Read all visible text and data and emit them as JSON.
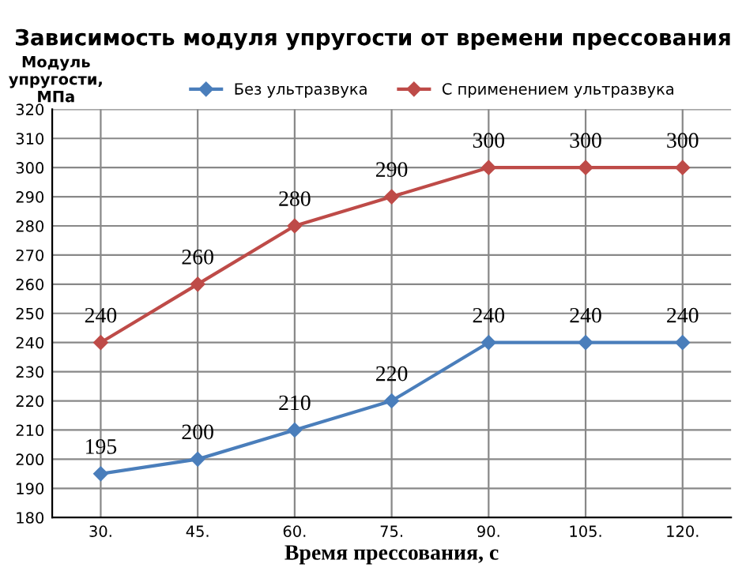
{
  "chart_data": {
    "type": "line",
    "title": "Зависимость модуля упругости от времени прессования",
    "xlabel": "Время прессования, с",
    "ylabel": "Модуль упругости, МПа",
    "categories": [
      "30.",
      "45.",
      "60.",
      "75.",
      "90.",
      "105.",
      "120."
    ],
    "series": [
      {
        "name": "Без ультразвука",
        "color": "#4a7ebb",
        "values": [
          195,
          200,
          210,
          220,
          240,
          240,
          240
        ]
      },
      {
        "name": "С применением ультразвука",
        "color": "#be4b48",
        "values": [
          240,
          260,
          280,
          290,
          300,
          300,
          300
        ]
      }
    ],
    "ylim": [
      180,
      320
    ],
    "yticks": [
      180,
      190,
      200,
      210,
      220,
      230,
      240,
      250,
      260,
      270,
      280,
      290,
      300,
      310,
      320
    ],
    "grid": true,
    "legend": "top",
    "marker": "diamond",
    "data_labels": true
  }
}
